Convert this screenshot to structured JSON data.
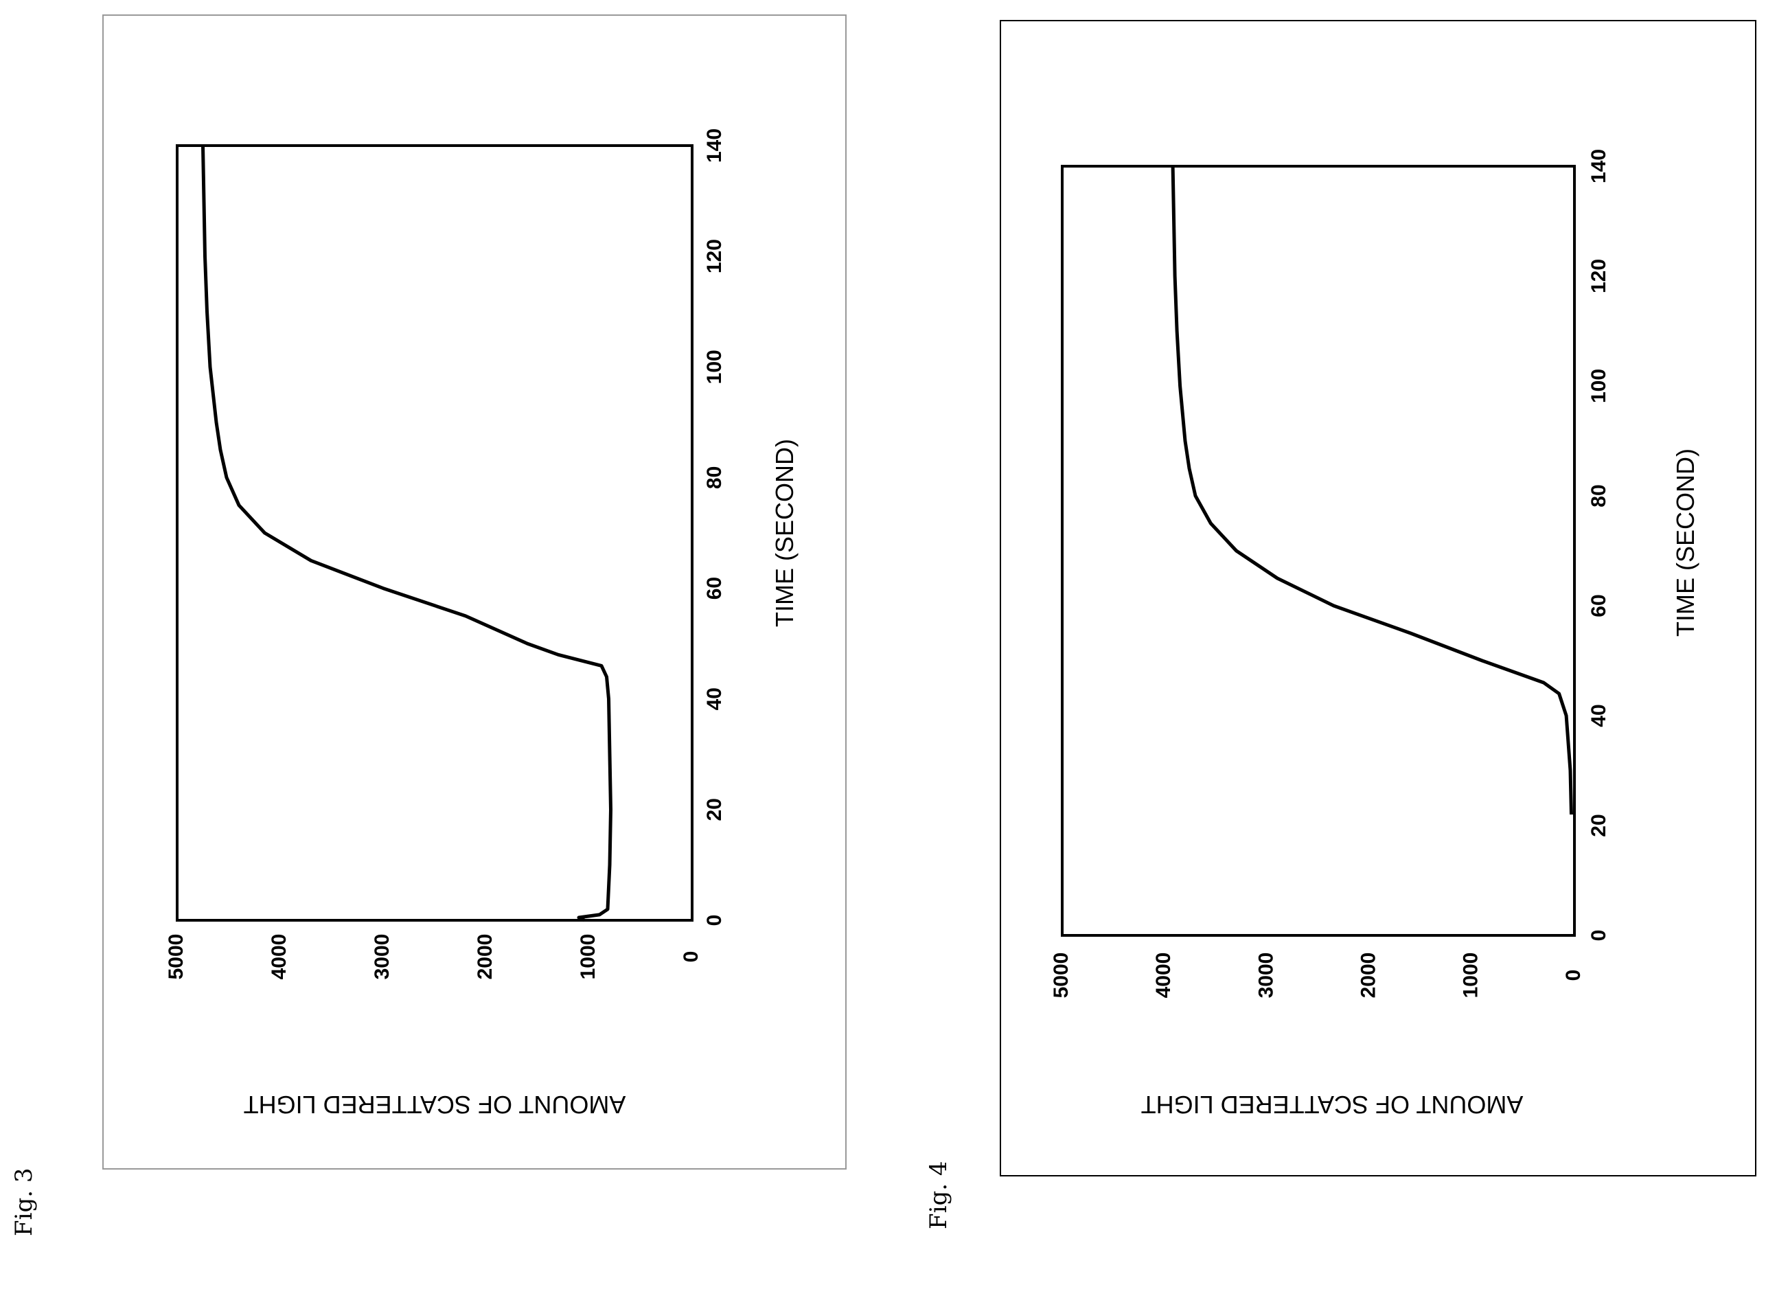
{
  "figures": [
    {
      "label": "Fig. 3"
    },
    {
      "label": "Fig. 4"
    }
  ],
  "chart_data": [
    {
      "type": "line",
      "xlabel": "TIME (SECOND)",
      "ylabel": "AMOUNT OF SCATTERED LIGHT",
      "xlim": [
        0,
        140
      ],
      "ylim": [
        0,
        5000
      ],
      "x_ticks": [
        0,
        20,
        40,
        60,
        80,
        100,
        120,
        140
      ],
      "y_ticks": [
        0,
        1000,
        2000,
        3000,
        4000,
        5000
      ],
      "grid": false,
      "orientation": "rotated 90 degrees counter-clockwise",
      "series": [
        {
          "x": [
            0,
            0.5,
            1,
            2,
            10,
            20,
            30,
            40,
            44,
            46,
            48,
            50,
            55,
            60,
            65,
            70,
            75,
            80,
            85,
            90,
            95,
            100,
            110,
            120,
            130,
            140
          ],
          "y": [
            1050,
            1100,
            900,
            820,
            800,
            790,
            800,
            810,
            830,
            880,
            1300,
            1600,
            2200,
            3000,
            3700,
            4150,
            4400,
            4520,
            4580,
            4620,
            4650,
            4680,
            4710,
            4730,
            4740,
            4750
          ]
        }
      ]
    },
    {
      "type": "line",
      "xlabel": "TIME (SECOND)",
      "ylabel": "AMOUNT OF SCATTERED LIGHT",
      "xlim": [
        0,
        140
      ],
      "ylim": [
        0,
        5000
      ],
      "x_ticks": [
        0,
        20,
        40,
        60,
        80,
        100,
        120,
        140
      ],
      "y_ticks": [
        0,
        1000,
        2000,
        3000,
        4000,
        5000
      ],
      "grid": false,
      "orientation": "rotated 90 degrees counter-clockwise",
      "series": [
        {
          "x": [
            22,
            30,
            40,
            44,
            46,
            48,
            50,
            55,
            60,
            65,
            70,
            75,
            80,
            85,
            90,
            100,
            110,
            120,
            130,
            140
          ],
          "y": [
            30,
            40,
            80,
            150,
            300,
            600,
            900,
            1600,
            2350,
            2900,
            3300,
            3550,
            3700,
            3760,
            3800,
            3850,
            3880,
            3900,
            3910,
            3920
          ]
        }
      ]
    }
  ]
}
